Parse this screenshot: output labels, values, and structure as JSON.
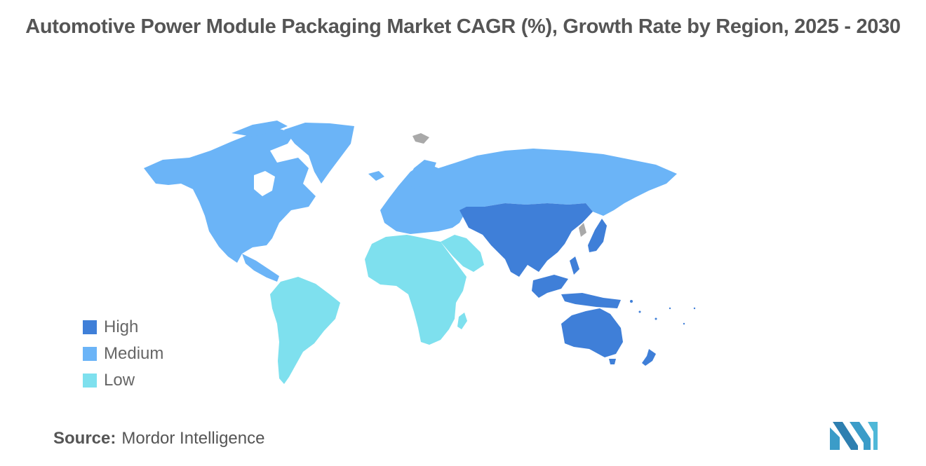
{
  "title": "Automotive Power Module Packaging Market CAGR (%), Growth Rate by Region, 2025 - 2030",
  "legend": {
    "items": [
      {
        "label": "High",
        "color": "#3F7FD8"
      },
      {
        "label": "Medium",
        "color": "#6BB4F7"
      },
      {
        "label": "Low",
        "color": "#7EE0EE"
      }
    ]
  },
  "regions": [
    {
      "name": "North America",
      "category": "Medium"
    },
    {
      "name": "Greenland",
      "category": "Medium"
    },
    {
      "name": "Europe",
      "category": "Medium"
    },
    {
      "name": "Russia",
      "category": "Medium"
    },
    {
      "name": "Central Asia",
      "category": "Medium"
    },
    {
      "name": "South America",
      "category": "Low"
    },
    {
      "name": "Africa",
      "category": "Low"
    },
    {
      "name": "Middle East",
      "category": "Low"
    },
    {
      "name": "Asia-Pacific",
      "category": "High"
    },
    {
      "name": "Australia",
      "category": "High"
    }
  ],
  "source": {
    "label": "Source:",
    "value": "Mordor Intelligence"
  },
  "no_data_color": "#A9A9A9",
  "logo_color": "#3B9CC8"
}
